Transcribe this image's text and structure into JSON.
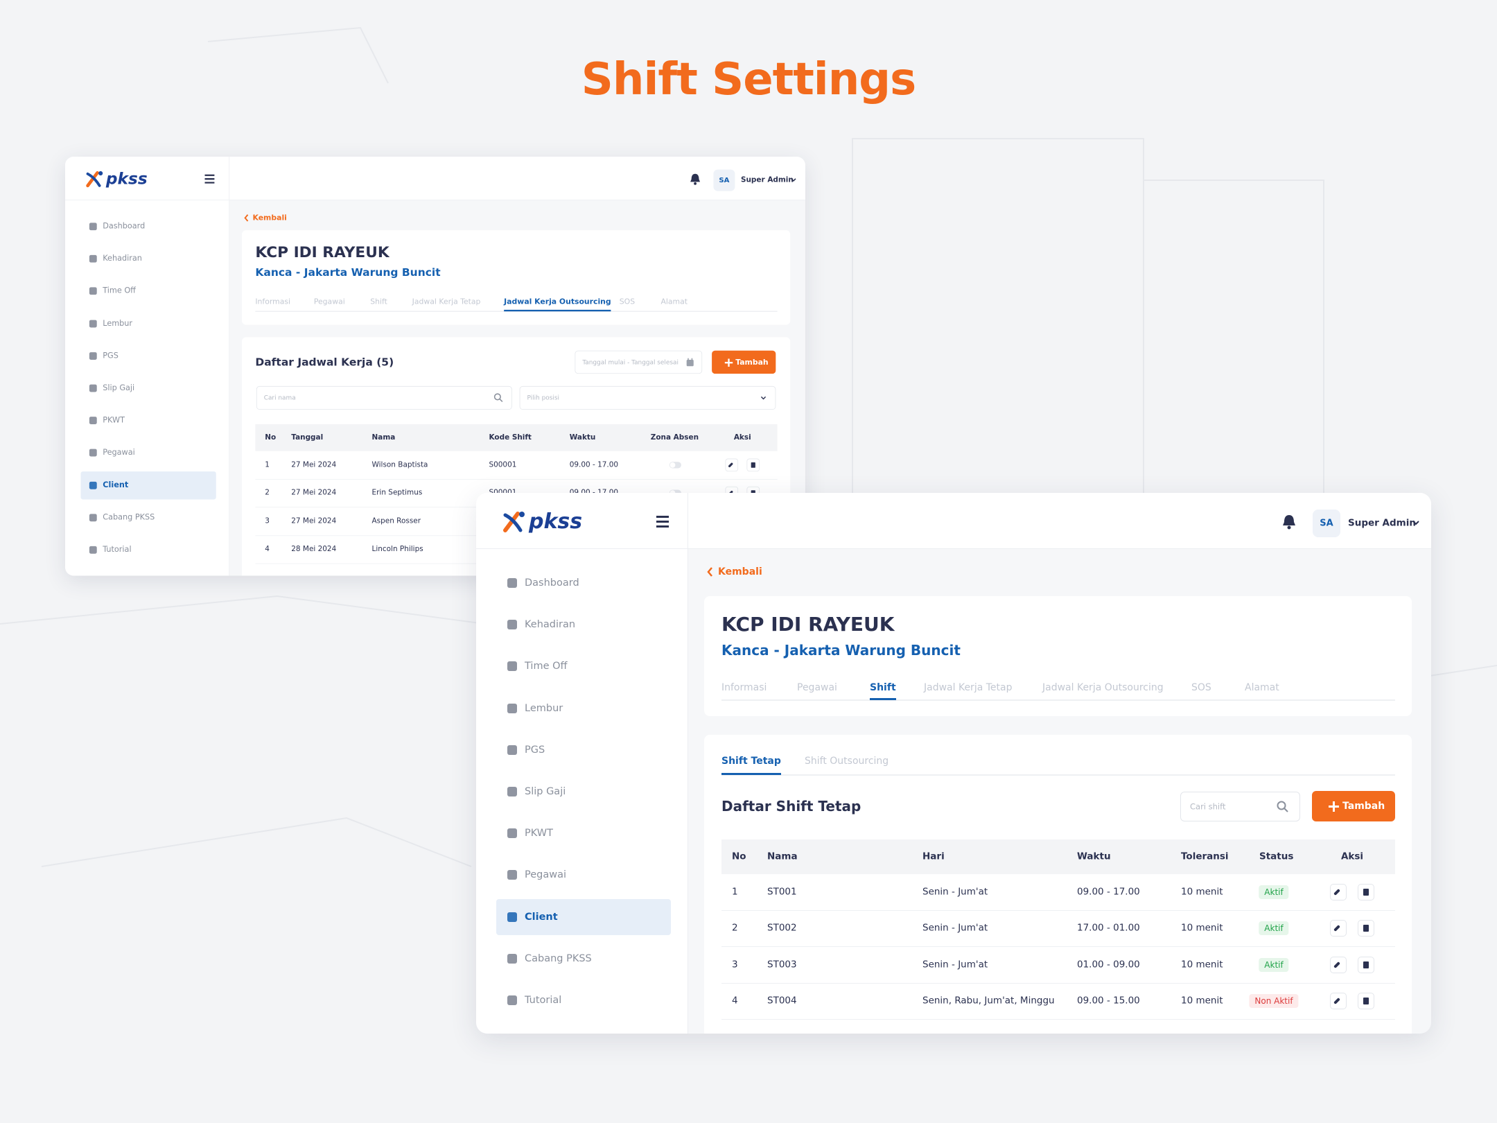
{
  "title": "Shift Settings",
  "windows": [
    {
      "logo": "pkss",
      "user": {
        "initials": "SA",
        "name": "Super Admin"
      },
      "menu": [
        {
          "label": "Dashboard",
          "active": false
        },
        {
          "label": "Kehadiran",
          "active": false
        },
        {
          "label": "Time Off",
          "active": false
        },
        {
          "label": "Lembur",
          "active": false
        },
        {
          "label": "PGS",
          "active": false
        },
        {
          "label": "Slip Gaji",
          "active": false
        },
        {
          "label": "PKWT",
          "active": false
        },
        {
          "label": "Pegawai",
          "active": false
        },
        {
          "label": "Client",
          "active": true
        },
        {
          "label": "Cabang PKSS",
          "active": false
        },
        {
          "label": "Tutorial",
          "active": false
        }
      ],
      "back": "Kembali",
      "page_title": "KCP IDI RAYEUK",
      "page_subtitle": "Kanca - Jakarta Warung Buncit",
      "tabs": [
        {
          "label": "Informasi",
          "active": false
        },
        {
          "label": "Pegawai",
          "active": false
        },
        {
          "label": "Shift",
          "active": false
        },
        {
          "label": "Jadwal Kerja Tetap",
          "active": false
        },
        {
          "label": "Jadwal Kerja Outsourcing",
          "active": true
        },
        {
          "label": "SOS",
          "active": false
        },
        {
          "label": "Alamat",
          "active": false
        }
      ],
      "card": {
        "title": "Daftar Jadwal Kerja (5)",
        "date_placeholder": "Tanggal mulai - Tanggal selesai",
        "button": "Tambah",
        "search_placeholder": "Cari nama",
        "select_placeholder": "Pilih posisi",
        "table": {
          "columns": [
            "No",
            "Tanggal",
            "Nama",
            "Kode Shift",
            "Waktu",
            "Zona Absen",
            "Aksi"
          ],
          "rows": [
            [
              "1",
              "27 Mei 2024",
              "Wilson Baptista",
              "S00001",
              "09.00 - 17.00",
              {
                "toggle": false
              }
            ],
            [
              "2",
              "27 Mei 2024",
              "Erin Septimus",
              "S00001",
              "09.00 - 17.00",
              {
                "toggle": false
              }
            ],
            [
              "3",
              "27 Mei 2024",
              "Aspen Rosser"
            ],
            [
              "4",
              "28 Mei 2024",
              "Lincoln Philips"
            ]
          ]
        }
      }
    },
    {
      "logo": "pkss",
      "user": {
        "initials": "SA",
        "name": "Super Admin"
      },
      "menu": [
        {
          "label": "Dashboard",
          "active": false
        },
        {
          "label": "Kehadiran",
          "active": false
        },
        {
          "label": "Time Off",
          "active": false
        },
        {
          "label": "Lembur",
          "active": false
        },
        {
          "label": "PGS",
          "active": false
        },
        {
          "label": "Slip Gaji",
          "active": false
        },
        {
          "label": "PKWT",
          "active": false
        },
        {
          "label": "Pegawai",
          "active": false
        },
        {
          "label": "Client",
          "active": true
        },
        {
          "label": "Cabang PKSS",
          "active": false
        },
        {
          "label": "Tutorial",
          "active": false
        }
      ],
      "back": "Kembali",
      "page_title": "KCP IDI RAYEUK",
      "page_subtitle": "Kanca - Jakarta Warung Buncit",
      "tabs": [
        {
          "label": "Informasi",
          "active": false
        },
        {
          "label": "Pegawai",
          "active": false
        },
        {
          "label": "Shift",
          "active": true
        },
        {
          "label": "Jadwal Kerja Tetap",
          "active": false
        },
        {
          "label": "Jadwal Kerja Outsourcing",
          "active": false
        },
        {
          "label": "SOS",
          "active": false
        },
        {
          "label": "Alamat",
          "active": false
        }
      ],
      "card": {
        "subtabs": [
          {
            "label": "Shift Tetap",
            "active": true
          },
          {
            "label": "Shift Outsourcing",
            "active": false
          }
        ],
        "title": "Daftar Shift Tetap",
        "search_placeholder": "Cari shift",
        "button": "Tambah",
        "table": {
          "columns": [
            "No",
            "Nama",
            "Hari",
            "Waktu",
            "Toleransi",
            "Status",
            "Aksi"
          ],
          "rows": [
            [
              "1",
              "ST001",
              "Senin - Jum'at",
              "09.00 - 17.00",
              "10 menit",
              {
                "label": "Aktif",
                "active": true
              }
            ],
            [
              "2",
              "ST002",
              "Senin - Jum'at",
              "17.00 - 01.00",
              "10 menit",
              {
                "label": "Aktif",
                "active": true
              }
            ],
            [
              "3",
              "ST003",
              "Senin - Jum'at",
              "01.00 - 09.00",
              "10 menit",
              {
                "label": "Aktif",
                "active": true
              }
            ],
            [
              "4",
              "ST004",
              "Senin, Rabu, Jum'at, Minggu",
              "09.00 - 15.00",
              "10 menit",
              {
                "label": "Non Aktif",
                "active": false
              }
            ]
          ]
        }
      }
    }
  ]
}
